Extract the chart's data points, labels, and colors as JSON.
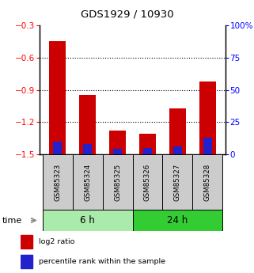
{
  "title": "GDS1929 / 10930",
  "categories": [
    "GSM85323",
    "GSM85324",
    "GSM85325",
    "GSM85326",
    "GSM85327",
    "GSM85328"
  ],
  "log2_values": [
    -0.45,
    -0.95,
    -1.28,
    -1.31,
    -1.07,
    -0.82
  ],
  "percentile_values": [
    10,
    8,
    4,
    5,
    6,
    13
  ],
  "left_ylim": [
    -1.5,
    -0.3
  ],
  "left_yticks": [
    -1.5,
    -1.2,
    -0.9,
    -0.6,
    -0.3
  ],
  "right_ylim": [
    0,
    100
  ],
  "right_yticks": [
    0,
    25,
    50,
    75,
    100
  ],
  "right_yticklabels": [
    "0",
    "25",
    "50",
    "75",
    "100%"
  ],
  "bar_color_red": "#cc0000",
  "bar_color_blue": "#2222cc",
  "time_groups": [
    {
      "label": "6 h",
      "color": "#aaeaaa"
    },
    {
      "label": "24 h",
      "color": "#33cc33"
    }
  ],
  "legend_items": [
    {
      "label": "log2 ratio",
      "color": "#cc0000"
    },
    {
      "label": "percentile rank within the sample",
      "color": "#2222cc"
    }
  ],
  "grid_color": "black",
  "bar_width": 0.55,
  "left_axis_color": "red",
  "right_axis_color": "blue",
  "time_label": "time",
  "sample_box_color": "#cccccc"
}
